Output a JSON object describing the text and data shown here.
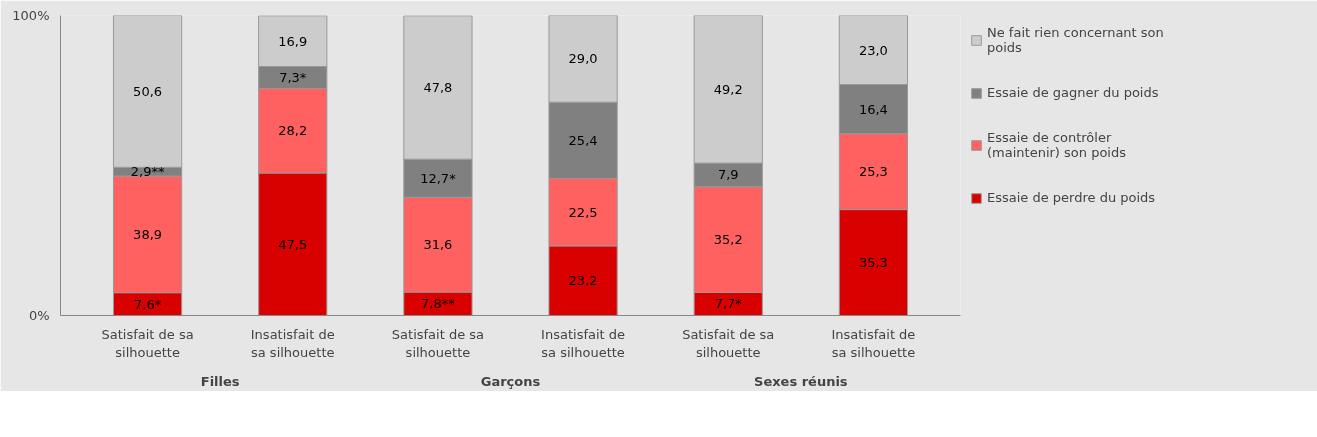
{
  "chart_data": {
    "type": "bar",
    "stacked": true,
    "categories": [
      "Satisfait de sa silhouette",
      "Insatisfait de sa silhouette",
      "Satisfait de sa silhouette",
      "Insatisfait de sa silhouette",
      "Satisfait de sa silhouette",
      "Insatisfait de sa silhouette"
    ],
    "series": [
      {
        "name": "Essaie de perdre du poids",
        "color": "#d90000",
        "values": [
          7.6,
          47.5,
          7.8,
          23.2,
          7.7,
          35.3
        ],
        "value_labels": [
          "7,6*",
          "47,5",
          "7,8**",
          "23,2",
          "7,7*",
          "35,3"
        ]
      },
      {
        "name": "Essaie de contrôler (maintenir) son poids",
        "color": "#ff6161",
        "values": [
          38.9,
          28.2,
          31.6,
          22.5,
          35.2,
          25.3
        ],
        "value_labels": [
          "38,9",
          "28,2",
          "31,6",
          "22,5",
          "35,2",
          "25,3"
        ]
      },
      {
        "name": "Essaie de gagner du poids",
        "color": "#808080",
        "values": [
          2.9,
          7.3,
          12.7,
          25.4,
          7.9,
          16.4
        ],
        "value_labels": [
          "2,9**",
          "7,3*",
          "12,7*",
          "25,4",
          "7,9",
          "16,4"
        ]
      },
      {
        "name": "Ne fait rien concernant son poids",
        "color": "#cccccc",
        "values": [
          50.6,
          16.9,
          47.8,
          29.0,
          49.2,
          23.0
        ],
        "value_labels": [
          "50,6",
          "16,9",
          "47,8",
          "29,0",
          "49,2",
          "23,0"
        ]
      }
    ],
    "ylim": [
      0,
      100
    ],
    "yticks": [
      {
        "value": 0,
        "label": "0%"
      },
      {
        "value": 100,
        "label": "100%"
      }
    ],
    "annotations": [
      "Filles",
      "Garçons",
      "Sexes réunis"
    ],
    "legend": "right"
  }
}
